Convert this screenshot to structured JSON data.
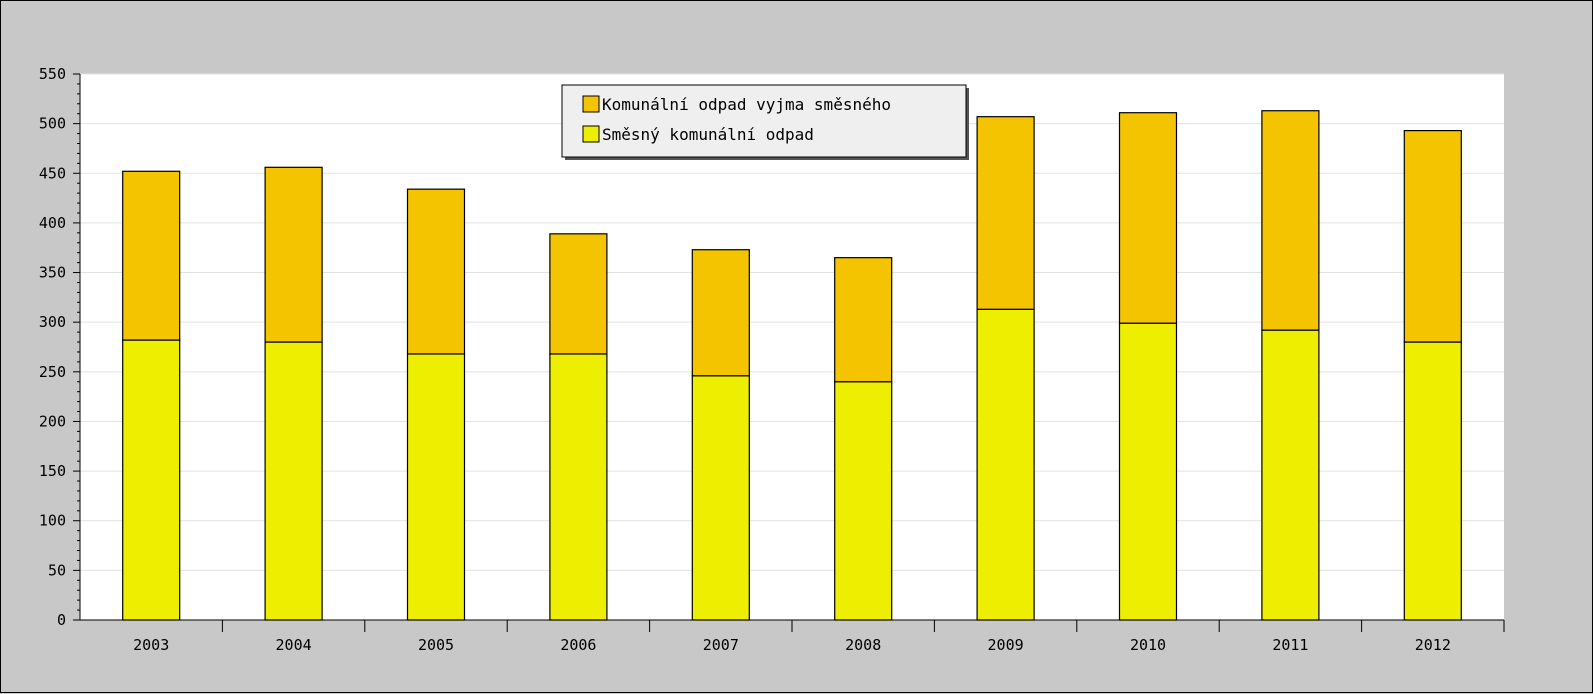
{
  "chart_data": {
    "type": "bar",
    "stacked": true,
    "title": "",
    "xlabel": "",
    "ylabel": "",
    "categories": [
      "2003",
      "2004",
      "2005",
      "2006",
      "2007",
      "2008",
      "2009",
      "2010",
      "2011",
      "2012"
    ],
    "series": [
      {
        "name": "Směsný komunální odpad",
        "color": "#eeee00",
        "values": [
          282,
          280,
          268,
          268,
          246,
          240,
          313,
          299,
          292,
          280
        ]
      },
      {
        "name": "Komunální odpad vyjma směsného",
        "color": "#f5c400",
        "values": [
          170,
          176,
          166,
          121,
          127,
          125,
          194,
          212,
          221,
          213
        ]
      }
    ],
    "ylim": [
      0,
      550
    ],
    "yticks": [
      "0",
      "50",
      "100",
      "150",
      "200",
      "250",
      "300",
      "350",
      "400",
      "450",
      "500",
      "550"
    ],
    "grid": true,
    "legend_position": "top-center",
    "legend_order": [
      "Komunální odpad vyjma směsného",
      "Směsný komunální odpad"
    ]
  }
}
